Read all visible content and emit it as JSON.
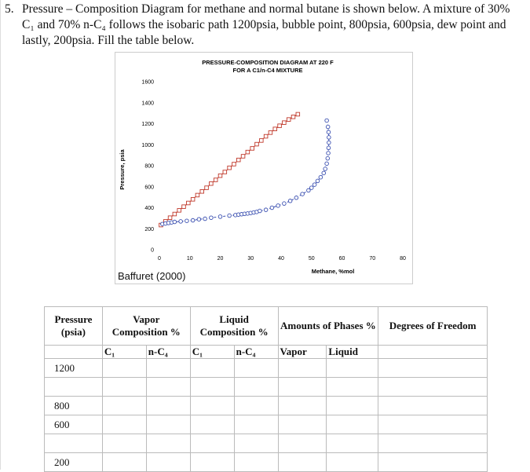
{
  "problem": {
    "number": "5.",
    "text": "Pressure – Composition Diagram for methane and normal butane is shown below. A mixture of 30% C₁ and 70% n-C₄ follows the isobaric path 1200psia, bubble point, 800psia, 600psia, dew point and lastly, 200psia. Fill the table below."
  },
  "figure_credit": "Baffuret (2000)",
  "chart_data": {
    "type": "scatter",
    "title": "PRESSURE-COMPOSITION DIAGRAM AT 220 F",
    "subtitle": "FOR A C1/n-C4 MIXTURE",
    "xlabel": "Methane, %mol",
    "ylabel": "Pressure, psia",
    "xlim": [
      0,
      80
    ],
    "ylim": [
      0,
      1600
    ],
    "x_ticks": [
      "0",
      "10",
      "20",
      "30",
      "40",
      "50",
      "60",
      "70",
      "80"
    ],
    "y_ticks": [
      "0",
      "200",
      "400",
      "600",
      "800",
      "1000",
      "1200",
      "1400",
      "1600"
    ],
    "colors": {
      "bubble": "#c0392b",
      "dew": "#3a4fb0"
    },
    "series": [
      {
        "name": "",
        "style": "solid-square",
        "x": [
          0.5,
          2,
          3.5,
          5,
          6.5,
          8,
          9.5,
          11,
          12.5,
          14,
          15.5,
          17,
          18.5,
          20,
          21.5,
          23,
          24.5,
          26,
          27.5,
          29,
          30.5,
          32,
          33.5,
          35,
          36.5,
          38,
          39.5,
          41,
          42.5,
          44,
          45.5
        ],
        "y": [
          235,
          270,
          305,
          340,
          375,
          410,
          445,
          480,
          520,
          555,
          590,
          630,
          665,
          705,
          740,
          780,
          815,
          855,
          890,
          930,
          965,
          1005,
          1040,
          1080,
          1115,
          1150,
          1180,
          1210,
          1240,
          1265,
          1290
        ]
      },
      {
        "name": "",
        "style": "dashed-circle",
        "x": [
          1,
          2,
          3,
          4,
          5,
          7,
          9,
          11,
          13,
          15,
          17,
          20,
          23,
          25,
          26,
          27,
          28,
          29,
          30,
          31,
          32,
          33,
          35,
          37,
          39,
          41,
          43,
          45,
          47,
          49,
          50,
          51,
          52,
          53,
          54,
          54.5,
          55,
          55.3,
          55.5,
          55.6,
          55.7,
          55.7,
          55.6,
          55.4,
          55
        ],
        "y": [
          245,
          250,
          255,
          260,
          265,
          270,
          275,
          280,
          290,
          295,
          305,
          315,
          325,
          330,
          335,
          338,
          342,
          345,
          350,
          355,
          360,
          370,
          380,
          400,
          420,
          440,
          465,
          495,
          530,
          565,
          590,
          620,
          655,
          690,
          730,
          770,
          820,
          870,
          920,
          970,
          1020,
          1070,
          1120,
          1170,
          1230
        ]
      }
    ]
  },
  "table": {
    "headers": {
      "pressure": "Pressure (psia)",
      "vapor": "Vapor Composition %",
      "liquid": "Liquid Composition %",
      "amounts": "Amounts of Phases %",
      "dof": "Degrees of Freedom"
    },
    "subheaders": [
      "C₁",
      "n-C₄",
      "C₁",
      "n-C₄",
      "Vapor",
      "Liquid"
    ],
    "rows": [
      "1200",
      "",
      "800",
      "600",
      "",
      "200"
    ]
  }
}
